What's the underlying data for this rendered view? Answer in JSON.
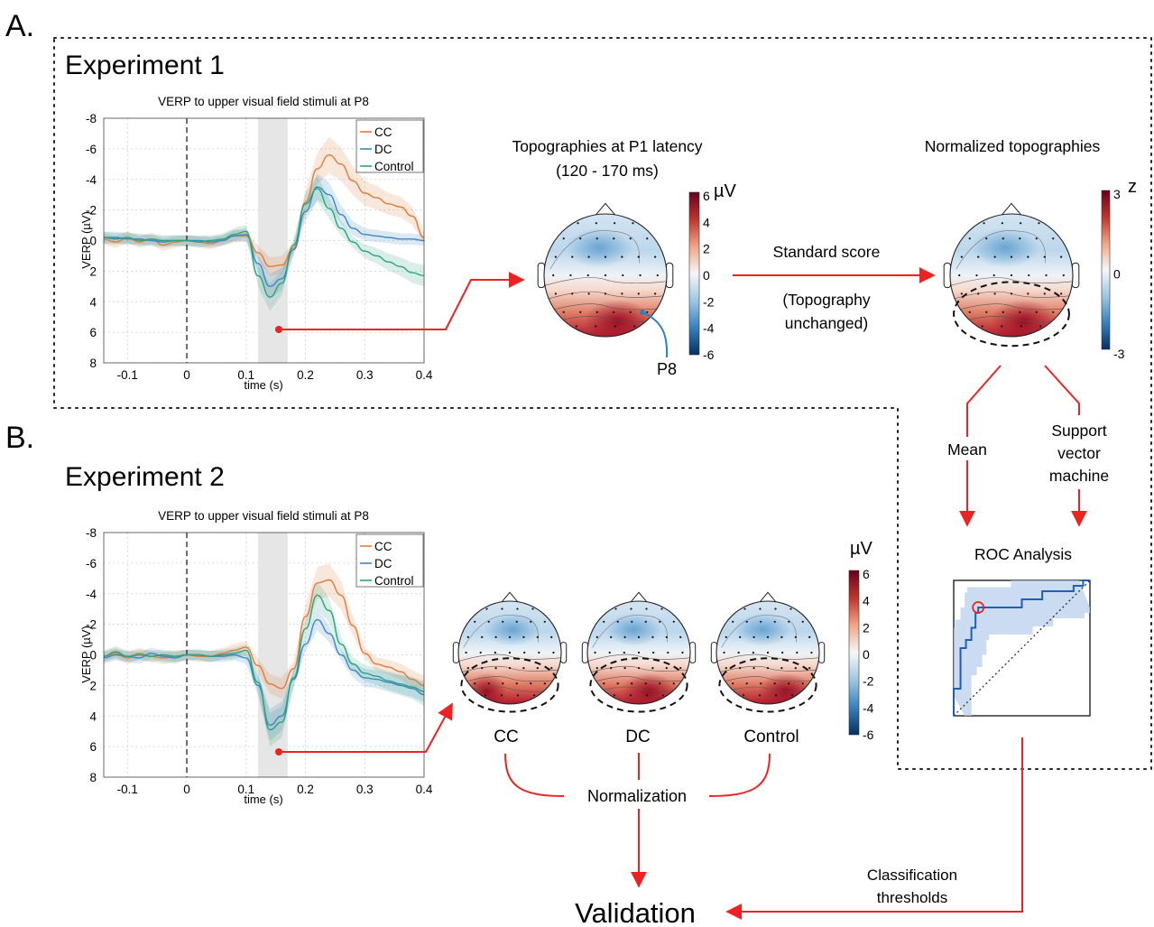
{
  "panel_a": {
    "letter": "A.",
    "experiment": "Experiment 1",
    "topo_title_line1": "Topographies at P1 latency",
    "topo_title_line2": "(120 - 170 ms)",
    "colorbar_unit": "µV",
    "colorbar_ticks": [
      "6",
      "4",
      "2",
      "0",
      "-2",
      "-4",
      "-6"
    ],
    "electrode_label": "P8",
    "arrow_label_line1": "Standard score",
    "arrow_label_line2": "(Topography",
    "arrow_label_line3": "unchanged)",
    "norm_title": "Normalized topographies",
    "z_unit": "z",
    "z_ticks": [
      "3",
      "0",
      "-3"
    ],
    "branch_mean": "Mean",
    "branch_svm_line1": "Support",
    "branch_svm_line2": "vector",
    "branch_svm_line3": "machine",
    "roc_title": "ROC Analysis"
  },
  "panel_b": {
    "letter": "B.",
    "experiment": "Experiment 2",
    "colorbar_unit": "µV",
    "colorbar_ticks": [
      "6",
      "4",
      "2",
      "0",
      "-2",
      "-4",
      "-6"
    ],
    "group_cc": "CC",
    "group_dc": "DC",
    "group_control": "Control",
    "normalization": "Normalization",
    "validation": "Validation",
    "thresholds_line1": "Classification",
    "thresholds_line2": "thresholds"
  },
  "colors": {
    "cc": "#e07b39",
    "dc": "#3a87c4",
    "control": "#2aa27e",
    "flow_arrow": "#ee2222",
    "roc_line": "#1f5fb5",
    "roc_band": "#b9cfee"
  },
  "chart_data": [
    {
      "type": "line",
      "title": "VERP to upper visual field stimuli at P8",
      "xlabel": "time (s)",
      "ylabel": "VERP (µV)",
      "xlim": [
        -0.14,
        0.4
      ],
      "ylim": [
        8,
        -8
      ],
      "y_inverted": true,
      "x_ticks": [
        "-0.1",
        "0",
        "0.1",
        "0.2",
        "0.3",
        "0.4"
      ],
      "y_ticks": [
        "-8",
        "-6",
        "-4",
        "-2",
        "0",
        "2",
        "4",
        "6",
        "8"
      ],
      "shaded_window": [
        0.12,
        0.17
      ],
      "stimulus_line_x": 0,
      "grid": true,
      "legend_position": "top-right",
      "x": [
        -0.14,
        -0.12,
        -0.1,
        -0.08,
        -0.06,
        -0.04,
        -0.02,
        0,
        0.02,
        0.04,
        0.06,
        0.08,
        0.1,
        0.12,
        0.14,
        0.16,
        0.18,
        0.2,
        0.22,
        0.24,
        0.26,
        0.28,
        0.3,
        0.32,
        0.34,
        0.36,
        0.38,
        0.4
      ],
      "series": [
        {
          "name": "CC",
          "values": [
            -0.1,
            0.1,
            -0.2,
            0.1,
            -0.1,
            0.3,
            0.1,
            0.0,
            0.1,
            0.2,
            0.0,
            -0.3,
            -0.3,
            0.8,
            1.7,
            1.6,
            0.5,
            -2.5,
            -4.7,
            -5.6,
            -5.0,
            -3.9,
            -3.1,
            -2.8,
            -2.4,
            -2.2,
            -1.6,
            -0.2
          ]
        },
        {
          "name": "DC",
          "values": [
            -0.2,
            -0.2,
            -0.1,
            -0.1,
            0.0,
            0.1,
            0.0,
            0.0,
            0.0,
            0.1,
            0.0,
            -0.3,
            -0.4,
            1.5,
            3.0,
            2.5,
            0.6,
            -1.9,
            -3.5,
            -3.0,
            -1.7,
            -0.8,
            -0.4,
            -0.3,
            -0.2,
            -0.1,
            -0.1,
            0.0
          ]
        },
        {
          "name": "Control",
          "values": [
            -0.2,
            -0.1,
            -0.2,
            0.0,
            -0.1,
            0.0,
            0.0,
            0.0,
            0.1,
            0.0,
            -0.1,
            -0.4,
            -0.6,
            2.3,
            3.7,
            2.8,
            0.3,
            -2.4,
            -3.4,
            -2.1,
            -0.8,
            0.1,
            0.7,
            1.0,
            1.4,
            1.7,
            2.1,
            2.3
          ]
        }
      ]
    },
    {
      "type": "line",
      "title": "VERP to upper visual field stimuli at P8",
      "xlabel": "time (s)",
      "ylabel": "VERP (µV)",
      "xlim": [
        -0.14,
        0.4
      ],
      "ylim": [
        8,
        -8
      ],
      "y_inverted": true,
      "x_ticks": [
        "-0.1",
        "0",
        "0.1",
        "0.2",
        "0.3",
        "0.4"
      ],
      "y_ticks": [
        "-8",
        "-6",
        "-4",
        "-2",
        "0",
        "2",
        "4",
        "6",
        "8"
      ],
      "shaded_window": [
        0.12,
        0.17
      ],
      "stimulus_line_x": 0,
      "grid": true,
      "legend_position": "top-right",
      "x": [
        -0.14,
        -0.12,
        -0.1,
        -0.08,
        -0.06,
        -0.04,
        -0.02,
        0,
        0.02,
        0.04,
        0.06,
        0.08,
        0.1,
        0.12,
        0.14,
        0.16,
        0.18,
        0.2,
        0.22,
        0.24,
        0.26,
        0.28,
        0.3,
        0.32,
        0.34,
        0.36,
        0.38,
        0.4
      ],
      "series": [
        {
          "name": "CC",
          "values": [
            0.1,
            -0.1,
            0.2,
            -0.1,
            0.1,
            0.2,
            0.1,
            0.0,
            0.1,
            0.1,
            -0.1,
            -0.3,
            -0.5,
            0.7,
            1.9,
            2.2,
            0.9,
            -2.5,
            -4.7,
            -4.9,
            -3.9,
            -1.9,
            -0.1,
            0.6,
            0.8,
            1.1,
            1.6,
            2.0
          ]
        },
        {
          "name": "DC",
          "values": [
            0.2,
            0.0,
            0.1,
            0.2,
            -0.1,
            0.1,
            0.2,
            0.0,
            0.0,
            0.1,
            0.1,
            0.0,
            0.2,
            2.0,
            4.6,
            4.0,
            1.6,
            -0.7,
            -2.3,
            -1.4,
            0.0,
            1.0,
            1.5,
            1.6,
            1.8,
            2.0,
            2.2,
            2.6
          ]
        },
        {
          "name": "Control",
          "values": [
            0.1,
            -0.2,
            0.1,
            0.0,
            0.1,
            0.0,
            0.1,
            0.0,
            0.0,
            0.1,
            0.0,
            -0.1,
            -0.3,
            1.8,
            4.9,
            4.4,
            1.5,
            -1.7,
            -3.9,
            -2.9,
            -0.7,
            0.6,
            1.2,
            1.4,
            1.7,
            1.9,
            2.1,
            2.4
          ]
        }
      ]
    },
    {
      "type": "line",
      "title": "ROC Analysis",
      "xlim": [
        0,
        1
      ],
      "ylim": [
        0,
        1
      ],
      "chance_line": true,
      "highlighted_point": [
        0.18,
        0.8
      ],
      "series": [
        {
          "name": "",
          "x": [
            0,
            0,
            0.05,
            0.05,
            0.09,
            0.09,
            0.13,
            0.13,
            0.16,
            0.16,
            0.18,
            0.18,
            0.5,
            0.5,
            0.65,
            0.65,
            0.88,
            0.88,
            0.95,
            0.95,
            1.0
          ],
          "y": [
            0,
            0.2,
            0.2,
            0.5,
            0.5,
            0.56,
            0.56,
            0.65,
            0.65,
            0.76,
            0.76,
            0.8,
            0.8,
            0.86,
            0.86,
            0.92,
            0.92,
            0.96,
            0.96,
            1.0,
            1.0
          ]
        }
      ]
    }
  ]
}
